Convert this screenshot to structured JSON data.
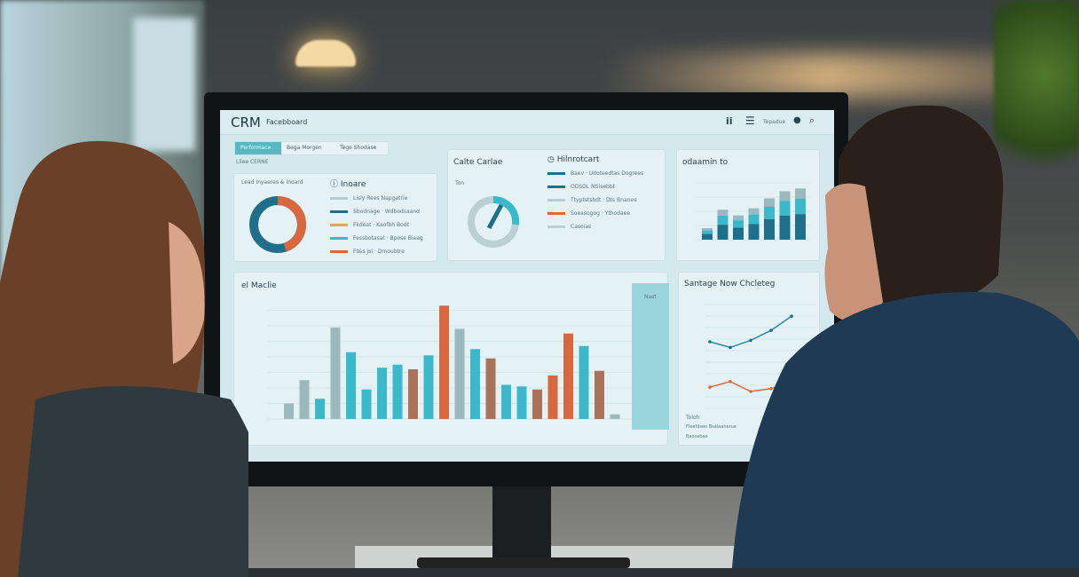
{
  "dashboard": {
    "logo": "CRM",
    "title": "Facebboard",
    "header_label": "Tepadue",
    "tabs": [
      "Performace",
      "Bega Morgen",
      "Tege Shodase"
    ],
    "section_label": "Lliee CERNE",
    "donut_card": {
      "legend": "Lead Inyaeres & Inoard"
    },
    "income_card": {
      "title": "Inoare",
      "rows": [
        "Lisly Rees Napgetrie",
        "Sbodnage · Wdbodsaand",
        "Fkdeat · Kaofbh Bodt",
        "Fessbotasat · Bpose Biaag",
        "Ft&s Jsl · Dmoubtre"
      ]
    },
    "gauge_card": {
      "title": "Calte Carlae",
      "legend": "Ton"
    },
    "hub_card": {
      "title": "Hilnrotcart",
      "rows": [
        "Baev · Udoteedtas Dogrees",
        "ODSDL Ntiisebbt",
        "Ttyptstsbdt · Dts Bnanee",
        "Soeasogog · Ythodaee",
        "Casoias"
      ]
    },
    "stack_card": {
      "title": "odaamin to"
    },
    "main_chart_title": "el Maclie",
    "side_panel_title": "Nast",
    "line_card": {
      "title": "Santage Now Chcleteg",
      "legend": [
        "Toloh",
        "Fleefdsee Bsalaanerue",
        "Baosabae"
      ]
    },
    "colors": {
      "teal": "#3bb8c9",
      "dark_teal": "#1f6f8b",
      "orange": "#d8683f",
      "brown": "#a8735a",
      "gray": "#9bb8bd"
    }
  },
  "chart_data": [
    {
      "type": "bar",
      "title": "el Maclie",
      "note": "values in gridline units; tick labels illegible",
      "values": [
        1.0,
        2.5,
        1.3,
        5.9,
        4.3,
        1.9,
        3.3,
        3.5,
        3.2,
        4.1,
        7.3,
        5.8,
        4.5,
        3.9,
        2.2,
        2.1,
        1.9,
        2.8,
        5.5,
        4.7,
        3.1,
        0.3
      ],
      "colors": [
        "gray",
        "gray",
        "teal",
        "gray",
        "teal",
        "teal",
        "teal",
        "teal",
        "brown",
        "teal",
        "orange",
        "gray",
        "teal",
        "brown",
        "teal",
        "teal",
        "brown",
        "orange",
        "orange",
        "teal",
        "brown",
        "gray"
      ]
    },
    {
      "type": "bar",
      "title": "odaamin to",
      "values": [
        0.8,
        2.1,
        1.7,
        2.2,
        2.9,
        3.4,
        3.6
      ]
    },
    {
      "type": "line",
      "title": "Santage Now Chcleteg",
      "series": [
        {
          "values": [
            5,
            4.6,
            5.1,
            5.8,
            6.8
          ]
        },
        {
          "values": [
            1.8,
            2.2,
            1.5,
            1.7,
            2.2
          ]
        }
      ]
    },
    {
      "type": "pie",
      "values": [
        45,
        55
      ]
    }
  ]
}
